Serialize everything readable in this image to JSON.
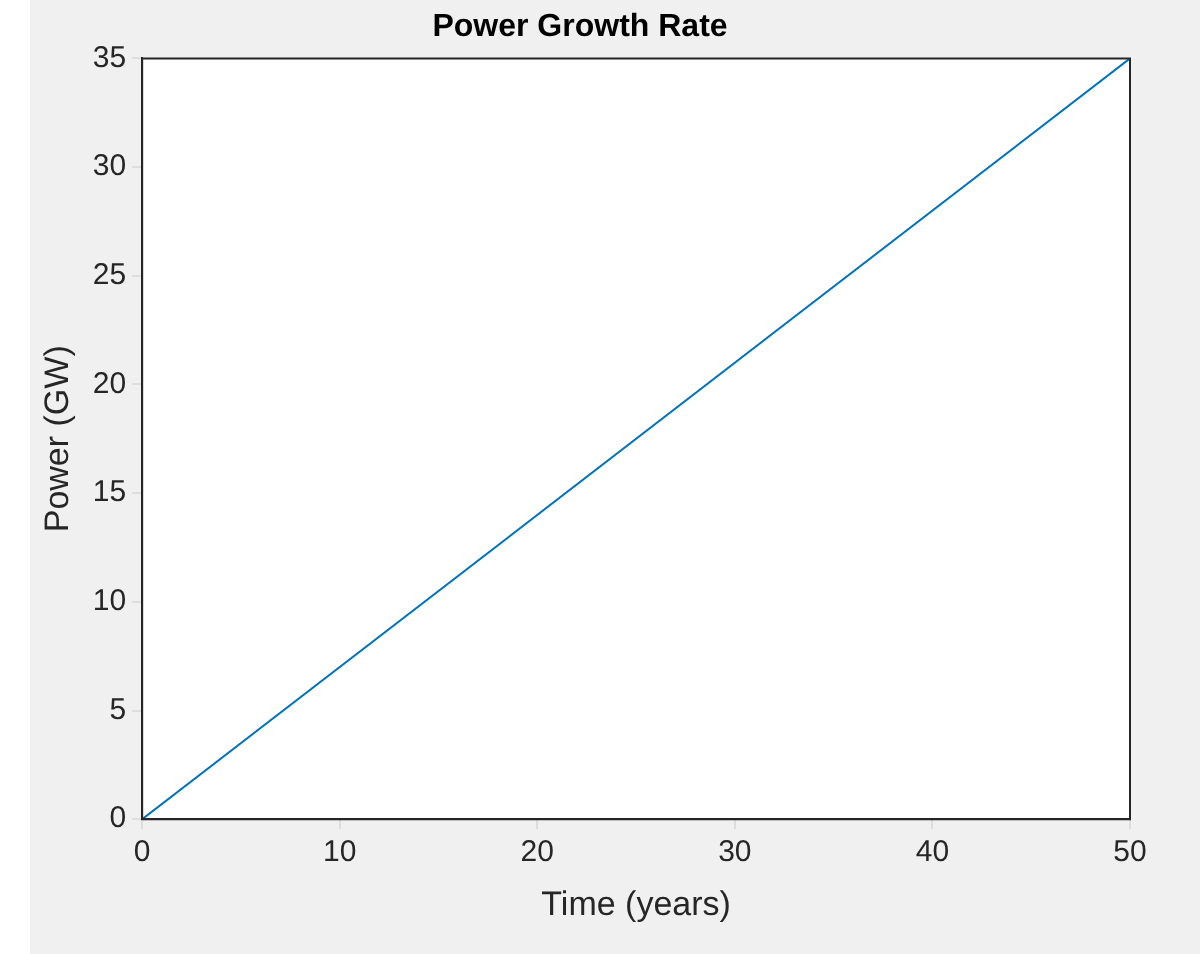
{
  "chart_data": {
    "type": "line",
    "title": "Power Growth Rate",
    "xlabel": "Time (years)",
    "ylabel": "Power (GW)",
    "x": [
      0,
      50
    ],
    "series": [
      {
        "color": "#0072bd",
        "values": [
          0,
          35
        ]
      }
    ],
    "xlim": [
      0,
      50
    ],
    "xticks": [
      0,
      10,
      20,
      30,
      40,
      50
    ],
    "ylim": [
      0,
      35
    ],
    "yticks": [
      0,
      5,
      10,
      15,
      20,
      25,
      30,
      35
    ],
    "grid": false,
    "legend": false,
    "marker": "none",
    "line_style": "solid"
  }
}
